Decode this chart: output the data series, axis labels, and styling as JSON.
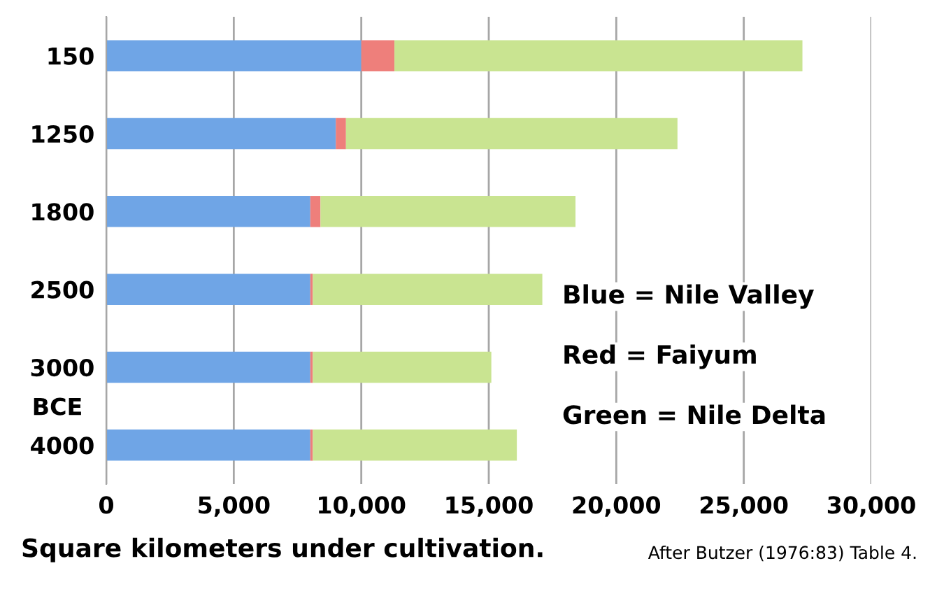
{
  "chart_data": {
    "type": "bar",
    "orientation": "horizontal",
    "stacked": true,
    "categories": [
      "150",
      "1250",
      "1800",
      "2500",
      "3000",
      "4000"
    ],
    "series": [
      {
        "color": "#6fa5e6",
        "values": [
          10000,
          9000,
          8000,
          8000,
          8000,
          8000
        ]
      },
      {
        "color": "#ee7f7b",
        "values": [
          1300,
          400,
          400,
          100,
          100,
          100
        ]
      },
      {
        "color": "#c9e491",
        "values": [
          16000,
          13000,
          10000,
          9000,
          7000,
          8000
        ]
      }
    ],
    "xlabel": "Square kilometers under cultivation.",
    "annotations": [
      "BCE",
      "Blue = Nile Valley",
      "Red = Faiyum",
      "Green = Nile Delta",
      "After Butzer (1976:83) Table 4."
    ],
    "xlim": [
      0,
      30000
    ],
    "xticks": [
      {
        "value": 0,
        "label": "0"
      },
      {
        "value": 5000,
        "label": "5,000"
      },
      {
        "value": 10000,
        "label": "10,000"
      },
      {
        "value": 15000,
        "label": "15,000"
      },
      {
        "value": 20000,
        "label": "20,000"
      },
      {
        "value": 25000,
        "label": "25,000"
      },
      {
        "value": 30000,
        "label": "30,000"
      }
    ],
    "grid": "x"
  }
}
